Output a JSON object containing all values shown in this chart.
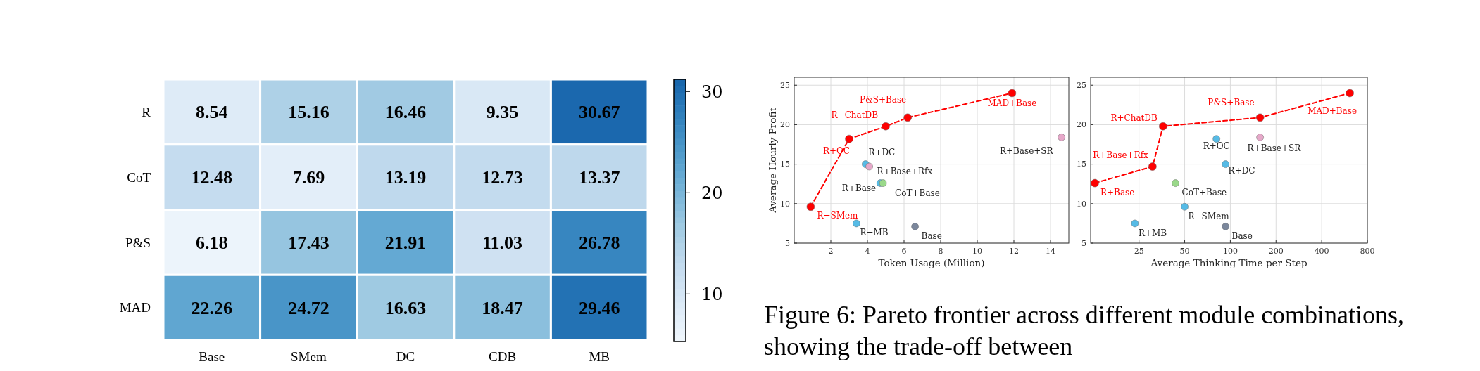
{
  "chart_data": [
    {
      "type": "heatmap",
      "categories": [
        "Base",
        "SMem",
        "DC",
        "CDB",
        "MB"
      ],
      "y_categories": [
        "R",
        "CoT",
        "P&S",
        "MAD"
      ],
      "cells": [
        [
          8.54,
          15.16,
          16.46,
          9.35,
          30.67
        ],
        [
          12.48,
          7.69,
          13.19,
          12.73,
          13.37
        ],
        [
          6.18,
          17.43,
          21.91,
          11.03,
          26.78
        ],
        [
          22.26,
          24.72,
          16.63,
          18.47,
          29.46
        ]
      ],
      "data_labels": true,
      "clim": [
        5.3,
        31.2
      ],
      "cticks": [
        10,
        20,
        30
      ]
    },
    {
      "type": "scatter",
      "xlabel": "Token Usage (Million)",
      "ylabel": "Average Hourly Profit",
      "xlim": [
        0,
        15
      ],
      "xticks": [
        2,
        4,
        6,
        8,
        10,
        12,
        14
      ],
      "ylim": [
        5,
        26
      ],
      "yticks": [
        5,
        10,
        15,
        20,
        25
      ],
      "grid": true,
      "marker": "circle",
      "line_style": "dashed",
      "series": [
        {
          "type": "line",
          "color": "#ff0000",
          "x": [
            0.9,
            3.0,
            5.0,
            6.2,
            11.9
          ],
          "values": [
            9.6,
            18.2,
            19.8,
            20.9,
            24.0
          ]
        },
        {
          "name": "R+DC",
          "color": "#56bbe6",
          "x": [
            3.9
          ],
          "values": [
            15.0
          ]
        },
        {
          "name": "R+Base+Rfx",
          "color": "#e6a8c9",
          "x": [
            4.1
          ],
          "values": [
            14.7
          ]
        },
        {
          "name": "R+Base",
          "color": "#56bbe6",
          "x": [
            4.7
          ],
          "values": [
            12.6
          ]
        },
        {
          "name": "CoT+Base",
          "color": "#9ad98a",
          "x": [
            4.85
          ],
          "values": [
            12.6
          ]
        },
        {
          "name": "R+MB",
          "color": "#56bbe6",
          "x": [
            3.4
          ],
          "values": [
            7.5
          ]
        },
        {
          "name": "Base",
          "color": "#7b879c",
          "x": [
            6.6
          ],
          "values": [
            7.1
          ]
        },
        {
          "name": "R+Base+SR",
          "color": "#e6a8c9",
          "x": [
            14.6
          ],
          "values": [
            18.4
          ]
        }
      ],
      "annotations": [
        {
          "text": "R+SMem",
          "x": 0.9,
          "y": 9.6
        },
        {
          "text": "R+OC",
          "x": 3.0,
          "y": 18.2
        },
        {
          "text": "R+ChatDB",
          "x": 5.0,
          "y": 19.8
        },
        {
          "text": "P&S+Base",
          "x": 6.2,
          "y": 20.9
        },
        {
          "text": "MAD+Base",
          "x": 11.9,
          "y": 24.0
        }
      ]
    },
    {
      "type": "scatter",
      "xlabel": "Average Thinking Time per Step",
      "log": "x",
      "xlim": [
        12,
        800
      ],
      "xticks": [
        25,
        50,
        100,
        200,
        400,
        800
      ],
      "ylim": [
        5,
        26
      ],
      "yticks": [
        5,
        10,
        15,
        20,
        25
      ],
      "grid": true,
      "marker": "circle",
      "line_style": "dashed",
      "series": [
        {
          "type": "line",
          "color": "#ff0000",
          "x": [
            12.8,
            30.7,
            36,
            157,
            613
          ],
          "values": [
            12.6,
            14.7,
            19.8,
            20.9,
            24.0
          ]
        },
        {
          "name": "R+OC",
          "color": "#56bbe6",
          "x": [
            81
          ],
          "values": [
            18.2
          ]
        },
        {
          "name": "R+Base+SR",
          "color": "#e6a8c9",
          "x": [
            157
          ],
          "values": [
            18.4
          ]
        },
        {
          "name": "R+DC",
          "color": "#56bbe6",
          "x": [
            93
          ],
          "values": [
            15.0
          ]
        },
        {
          "name": "CoT+Base",
          "color": "#9ad98a",
          "x": [
            43.5
          ],
          "values": [
            12.6
          ]
        },
        {
          "name": "R+SMem",
          "color": "#56bbe6",
          "x": [
            50
          ],
          "values": [
            9.6
          ]
        },
        {
          "name": "R+MB",
          "color": "#56bbe6",
          "x": [
            23.5
          ],
          "values": [
            7.5
          ]
        },
        {
          "name": "Base",
          "color": "#7b879c",
          "x": [
            93
          ],
          "values": [
            7.1
          ]
        }
      ],
      "annotations": [
        {
          "text": "R+Base",
          "x": 12.8,
          "y": 12.6
        },
        {
          "text": "R+Base+Rfx",
          "x": 30.7,
          "y": 14.7
        },
        {
          "text": "R+ChatDB",
          "x": 36,
          "y": 19.8
        },
        {
          "text": "P&S+Base",
          "x": 157,
          "y": 20.9
        },
        {
          "text": "MAD+Base",
          "x": 613,
          "y": 24.0
        }
      ]
    },
    {
      "type": "other",
      "title": "Figure 6: Pareto frontier across different module combinations, showing the trade-off between"
    }
  ]
}
